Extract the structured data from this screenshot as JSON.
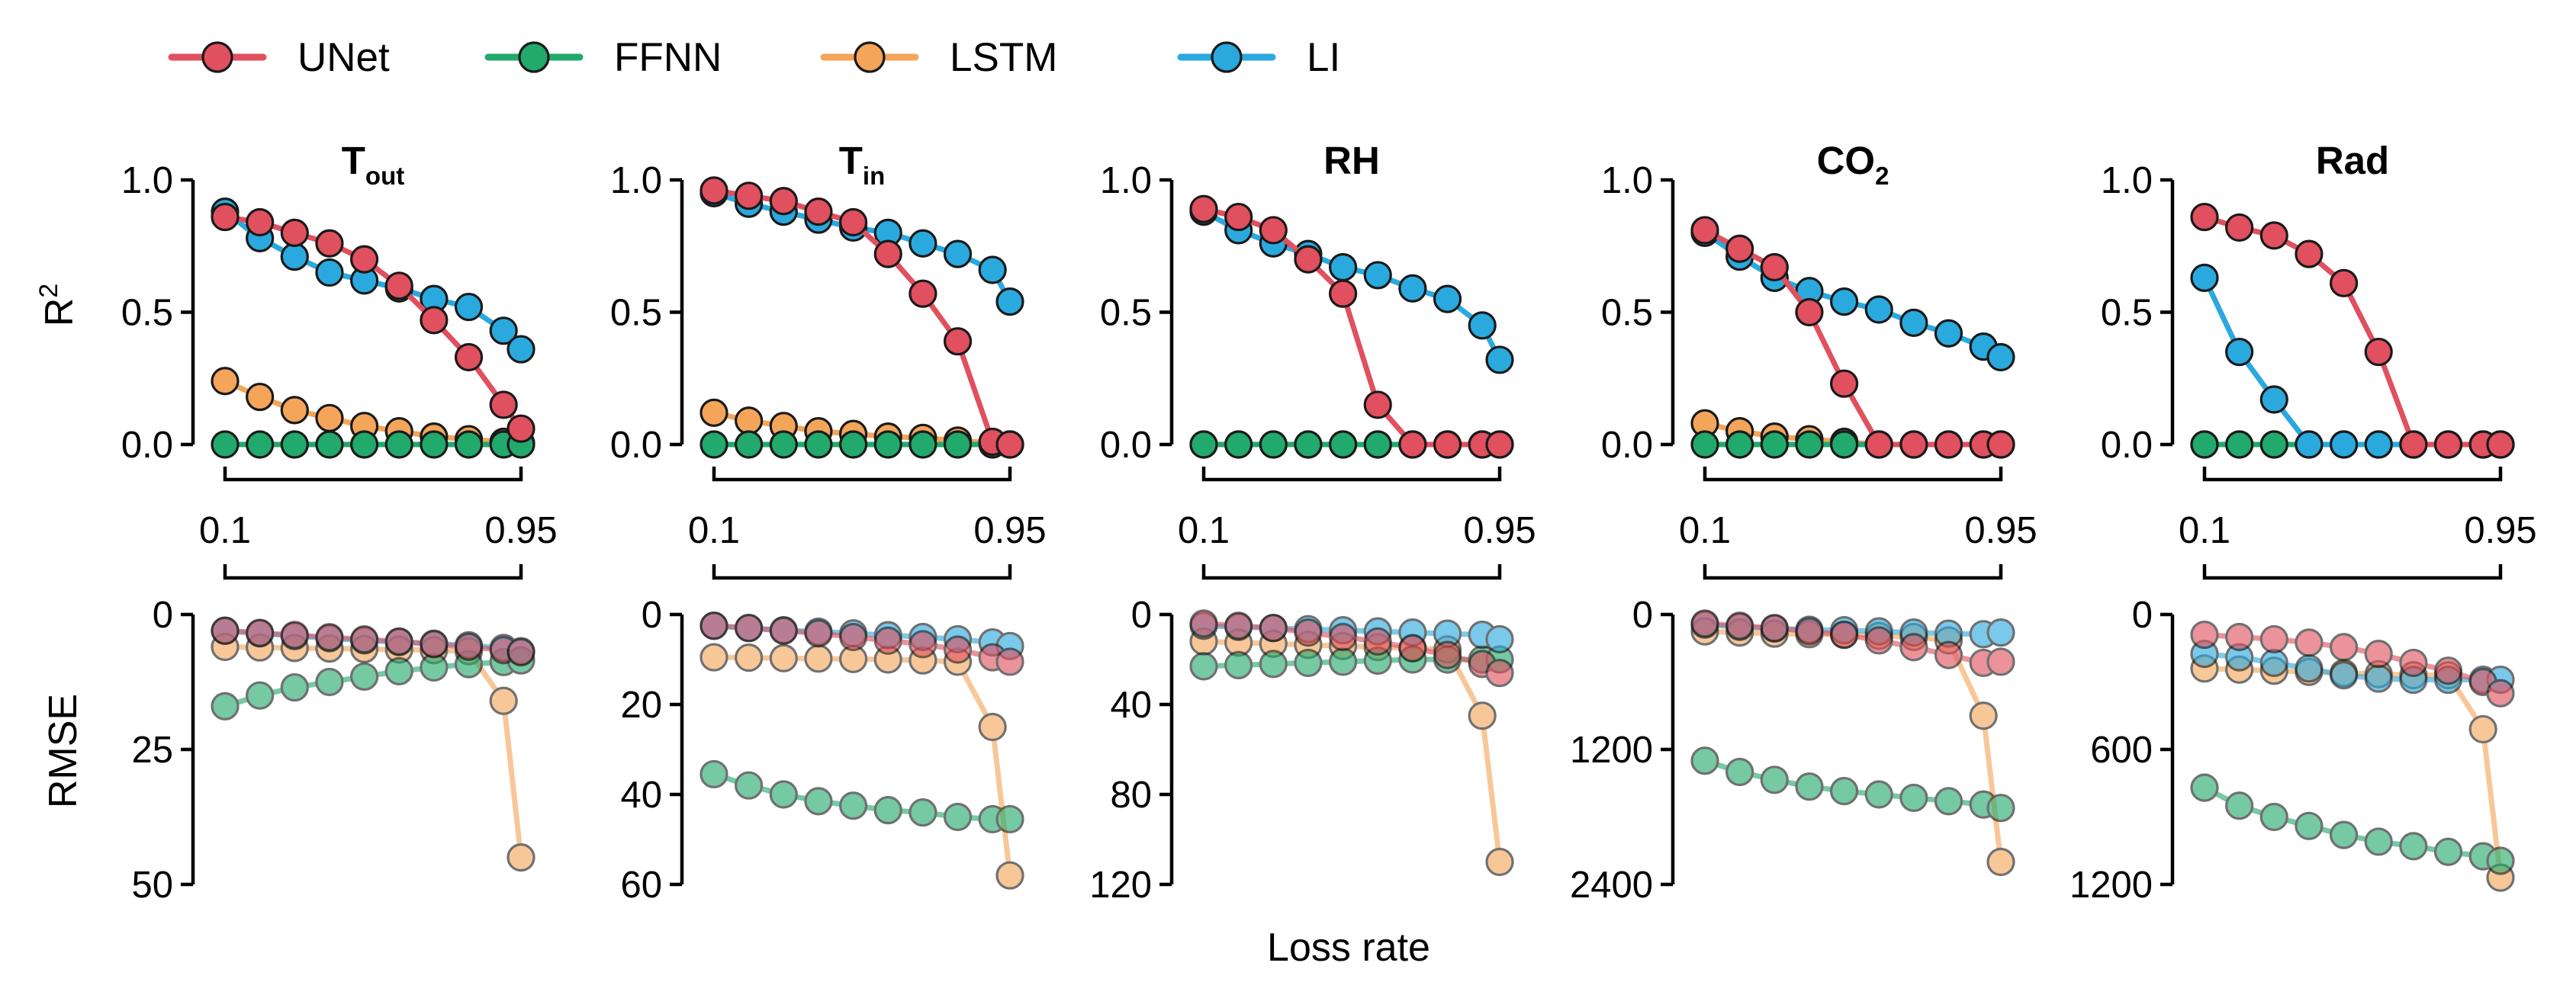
{
  "legend": [
    {
      "name": "UNet",
      "color": "#e0505e"
    },
    {
      "name": "FFNN",
      "color": "#22a96c"
    },
    {
      "name": "LSTM",
      "color": "#f4a55a"
    },
    {
      "name": "LI",
      "color": "#2aa9de"
    }
  ],
  "shared_xlabel": "Loss rate",
  "x_bracket": {
    "start_label": "0.1",
    "end_label": "0.95"
  },
  "r2_ylabel": "R",
  "r2_ylabel_sup": "2",
  "rmse_ylabel": "RMSE",
  "chart_data": [
    {
      "type": "line",
      "panel": "R2",
      "title": "T",
      "title_sub": "out",
      "x": [
        0.1,
        0.2,
        0.3,
        0.4,
        0.5,
        0.6,
        0.7,
        0.8,
        0.9,
        0.95
      ],
      "ylim": [
        0,
        1
      ],
      "yticks": [
        "0.0",
        "0.5",
        "1.0"
      ],
      "ytick_values": [
        0,
        0.5,
        1.0
      ],
      "series": [
        {
          "name": "UNet",
          "values": [
            0.86,
            0.84,
            0.8,
            0.76,
            0.7,
            0.6,
            0.47,
            0.33,
            0.15,
            0.06
          ]
        },
        {
          "name": "FFNN",
          "values": [
            0,
            0,
            0,
            0,
            0,
            0,
            0,
            0,
            0,
            0
          ]
        },
        {
          "name": "LSTM",
          "values": [
            0.24,
            0.18,
            0.13,
            0.1,
            0.07,
            0.05,
            0.03,
            0.02,
            0.01,
            0.005
          ]
        },
        {
          "name": "LI",
          "values": [
            0.88,
            0.78,
            0.71,
            0.65,
            0.62,
            0.59,
            0.55,
            0.52,
            0.43,
            0.36
          ]
        }
      ]
    },
    {
      "type": "line",
      "panel": "R2",
      "title": "T",
      "title_sub": "in",
      "x": [
        0.1,
        0.2,
        0.3,
        0.4,
        0.5,
        0.6,
        0.7,
        0.8,
        0.9,
        0.95
      ],
      "ylim": [
        0,
        1
      ],
      "yticks": [
        "0.0",
        "0.5",
        "1.0"
      ],
      "ytick_values": [
        0,
        0.5,
        1.0
      ],
      "series": [
        {
          "name": "UNet",
          "values": [
            0.96,
            0.94,
            0.92,
            0.88,
            0.84,
            0.72,
            0.57,
            0.39,
            0.01,
            0.0
          ]
        },
        {
          "name": "FFNN",
          "values": [
            0,
            0,
            0,
            0,
            0,
            0,
            0,
            0,
            0,
            0
          ]
        },
        {
          "name": "LSTM",
          "values": [
            0.12,
            0.09,
            0.07,
            0.05,
            0.04,
            0.03,
            0.025,
            0.015,
            0.005,
            0.0
          ]
        },
        {
          "name": "LI",
          "values": [
            0.95,
            0.91,
            0.88,
            0.85,
            0.82,
            0.8,
            0.76,
            0.72,
            0.66,
            0.54
          ]
        }
      ]
    },
    {
      "type": "line",
      "panel": "R2",
      "title": "RH",
      "title_sub": "",
      "x": [
        0.1,
        0.2,
        0.3,
        0.4,
        0.5,
        0.6,
        0.7,
        0.8,
        0.9,
        0.95
      ],
      "ylim": [
        0,
        1
      ],
      "yticks": [
        "0.0",
        "0.5",
        "1.0"
      ],
      "ytick_values": [
        0,
        0.5,
        1.0
      ],
      "series": [
        {
          "name": "UNet",
          "values": [
            0.89,
            0.86,
            0.81,
            0.7,
            0.57,
            0.15,
            0.0,
            0.0,
            0.0,
            0.0
          ]
        },
        {
          "name": "FFNN",
          "values": [
            0,
            0,
            0,
            0,
            0,
            0,
            0,
            0,
            0,
            0
          ]
        },
        {
          "name": "LSTM",
          "values": [
            0,
            0,
            0,
            0,
            0,
            0,
            0,
            0,
            0,
            0
          ]
        },
        {
          "name": "LI",
          "values": [
            0.88,
            0.81,
            0.76,
            0.72,
            0.67,
            0.64,
            0.59,
            0.55,
            0.45,
            0.32
          ]
        }
      ]
    },
    {
      "type": "line",
      "panel": "R2",
      "title": "CO",
      "title_sub": "2",
      "x": [
        0.1,
        0.2,
        0.3,
        0.4,
        0.5,
        0.6,
        0.7,
        0.8,
        0.9,
        0.95
      ],
      "ylim": [
        0,
        1
      ],
      "yticks": [
        "0.0",
        "0.5",
        "1.0"
      ],
      "ytick_values": [
        0,
        0.5,
        1.0
      ],
      "series": [
        {
          "name": "UNet",
          "values": [
            0.81,
            0.74,
            0.67,
            0.5,
            0.23,
            0.0,
            0.0,
            0.0,
            0.0,
            0.0
          ]
        },
        {
          "name": "FFNN",
          "values": [
            0,
            0,
            0,
            0,
            0,
            0,
            0,
            0,
            0,
            0
          ]
        },
        {
          "name": "LSTM",
          "values": [
            0.08,
            0.05,
            0.03,
            0.02,
            0.01,
            0.0,
            0.0,
            0.0,
            0.0,
            0.0
          ]
        },
        {
          "name": "LI",
          "values": [
            0.8,
            0.71,
            0.63,
            0.58,
            0.54,
            0.51,
            0.46,
            0.42,
            0.37,
            0.33
          ]
        }
      ]
    },
    {
      "type": "line",
      "panel": "R2",
      "title": "Rad",
      "title_sub": "",
      "x": [
        0.1,
        0.2,
        0.3,
        0.4,
        0.5,
        0.6,
        0.7,
        0.8,
        0.9,
        0.95
      ],
      "ylim": [
        0,
        1
      ],
      "yticks": [
        "0.0",
        "0.5",
        "1.0"
      ],
      "ytick_values": [
        0,
        0.5,
        1.0
      ],
      "series": [
        {
          "name": "UNet",
          "values": [
            0.86,
            0.82,
            0.79,
            0.72,
            0.61,
            0.35,
            0.0,
            0.0,
            0.0,
            0.0
          ]
        },
        {
          "name": "FFNN",
          "values": [
            0,
            0,
            0,
            0,
            0,
            0,
            0,
            0,
            0,
            0
          ]
        },
        {
          "name": "LSTM",
          "values": [
            0,
            0,
            0,
            0,
            0,
            0,
            0,
            0,
            0,
            0
          ]
        },
        {
          "name": "LI",
          "values": [
            0.63,
            0.35,
            0.17,
            0.0,
            0.0,
            0.0,
            0.0,
            0.0,
            0.0,
            0.0
          ]
        }
      ]
    },
    {
      "type": "line",
      "panel": "RMSE",
      "title": "T",
      "title_sub": "out",
      "x": [
        0.1,
        0.2,
        0.3,
        0.4,
        0.5,
        0.6,
        0.7,
        0.8,
        0.9,
        0.95
      ],
      "ylim": [
        0,
        50
      ],
      "inverted": true,
      "yticks": [
        "0",
        "25",
        "50"
      ],
      "ytick_values": [
        0,
        25,
        50
      ],
      "series": [
        {
          "name": "UNet",
          "values": [
            3,
            3.4,
            3.8,
            4.2,
            4.6,
            5.0,
            5.5,
            6.0,
            6.6,
            7.0
          ]
        },
        {
          "name": "FFNN",
          "values": [
            17,
            15,
            13.5,
            12.5,
            11.5,
            10.5,
            9.8,
            9.2,
            8.8,
            8.5
          ]
        },
        {
          "name": "LSTM",
          "values": [
            6,
            6.1,
            6.2,
            6.3,
            6.4,
            6.5,
            6.6,
            6.8,
            16,
            45
          ]
        },
        {
          "name": "LI",
          "values": [
            3,
            3.5,
            4,
            4.4,
            4.8,
            5.1,
            5.4,
            5.7,
            6.2,
            6.8
          ]
        }
      ]
    },
    {
      "type": "line",
      "panel": "RMSE",
      "title": "T",
      "title_sub": "in",
      "x": [
        0.1,
        0.2,
        0.3,
        0.4,
        0.5,
        0.6,
        0.7,
        0.8,
        0.9,
        0.95
      ],
      "ylim": [
        0,
        60
      ],
      "inverted": true,
      "yticks": [
        "0",
        "20",
        "40",
        "60"
      ],
      "ytick_values": [
        0,
        20,
        40,
        60
      ],
      "series": [
        {
          "name": "UNet",
          "values": [
            2.5,
            3,
            3.6,
            4.2,
            5,
            5.8,
            6.6,
            7.8,
            9.5,
            10.5
          ]
        },
        {
          "name": "FFNN",
          "values": [
            35.5,
            38,
            40,
            41.5,
            42.5,
            43.5,
            44,
            45,
            45.5,
            45.5
          ]
        },
        {
          "name": "LSTM",
          "values": [
            9.5,
            9.6,
            9.7,
            9.8,
            9.9,
            10,
            10.2,
            10.5,
            25,
            58
          ]
        },
        {
          "name": "LI",
          "values": [
            2.5,
            3,
            3.5,
            3.8,
            4.2,
            4.6,
            5,
            5.5,
            6.2,
            7
          ]
        }
      ]
    },
    {
      "type": "line",
      "panel": "RMSE",
      "title": "RH",
      "title_sub": "",
      "x": [
        0.1,
        0.2,
        0.3,
        0.4,
        0.5,
        0.6,
        0.7,
        0.8,
        0.9,
        0.95
      ],
      "ylim": [
        0,
        120
      ],
      "inverted": true,
      "yticks": [
        "0",
        "40",
        "80",
        "120"
      ],
      "ytick_values": [
        0,
        40,
        80,
        120
      ],
      "series": [
        {
          "name": "UNet",
          "values": [
            4,
            5,
            6,
            8,
            10,
            12,
            15,
            18,
            22,
            26
          ]
        },
        {
          "name": "FFNN",
          "values": [
            23,
            22.5,
            22,
            21.5,
            21,
            20.5,
            20,
            20,
            20,
            20
          ]
        },
        {
          "name": "LSTM",
          "values": [
            12,
            12.5,
            13,
            13.5,
            14,
            14.5,
            15,
            15.5,
            45,
            110
          ]
        },
        {
          "name": "LI",
          "values": [
            5,
            5.5,
            6,
            6.5,
            7,
            7.5,
            8,
            8.5,
            9,
            11
          ]
        }
      ]
    },
    {
      "type": "line",
      "panel": "RMSE",
      "title": "CO",
      "title_sub": "2",
      "x": [
        0.1,
        0.2,
        0.3,
        0.4,
        0.5,
        0.6,
        0.7,
        0.8,
        0.9,
        0.95
      ],
      "ylim": [
        0,
        2400
      ],
      "inverted": true,
      "yticks": [
        "0",
        "1200",
        "2400"
      ],
      "ytick_values": [
        0,
        1200,
        2400
      ],
      "series": [
        {
          "name": "UNet",
          "values": [
            80,
            100,
            120,
            150,
            180,
            230,
            290,
            360,
            430,
            420
          ]
        },
        {
          "name": "FFNN",
          "values": [
            1300,
            1400,
            1470,
            1530,
            1570,
            1600,
            1630,
            1660,
            1690,
            1720
          ]
        },
        {
          "name": "LSTM",
          "values": [
            150,
            160,
            170,
            175,
            180,
            190,
            200,
            230,
            900,
            2200
          ]
        },
        {
          "name": "LI",
          "values": [
            90,
            110,
            125,
            135,
            140,
            150,
            160,
            170,
            175,
            160
          ]
        }
      ]
    },
    {
      "type": "line",
      "panel": "RMSE",
      "title": "Rad",
      "title_sub": "",
      "x": [
        0.1,
        0.2,
        0.3,
        0.4,
        0.5,
        0.6,
        0.7,
        0.8,
        0.9,
        0.95
      ],
      "ylim": [
        0,
        1200
      ],
      "inverted": true,
      "yticks": [
        "0",
        "600",
        "1200"
      ],
      "ytick_values": [
        0,
        600,
        1200
      ],
      "series": [
        {
          "name": "UNet",
          "values": [
            90,
            100,
            110,
            125,
            145,
            175,
            215,
            250,
            300,
            350
          ]
        },
        {
          "name": "FFNN",
          "values": [
            770,
            850,
            900,
            940,
            980,
            1010,
            1030,
            1055,
            1075,
            1095
          ]
        },
        {
          "name": "LSTM",
          "values": [
            240,
            245,
            250,
            255,
            260,
            265,
            270,
            270,
            510,
            1170
          ]
        },
        {
          "name": "LI",
          "values": [
            175,
            190,
            215,
            240,
            270,
            285,
            290,
            290,
            290,
            290
          ]
        }
      ]
    }
  ]
}
